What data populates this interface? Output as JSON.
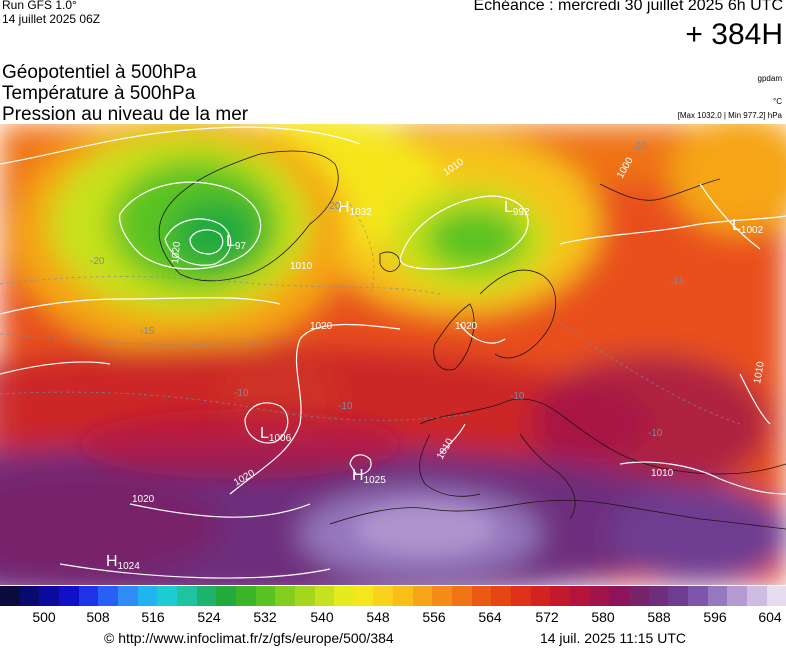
{
  "header": {
    "run_label": "Run GFS 1.0°",
    "run_date": "14 juillet 2025 06Z",
    "echeance": "Echéance : mercredi 30 juillet 2025 6h UTC",
    "lead_time": "+ 384H"
  },
  "titles": {
    "line1": "Géopotentiel à 500hPa",
    "line2": "Température à 500hPa",
    "line3": "Pression au niveau de la mer"
  },
  "meta": {
    "source_tag": "gpdam",
    "unit_tag": "°C",
    "range_tag": "[Max 1032.0 | Min 977.2] hPa"
  },
  "map": {
    "pressure_centers": [
      {
        "type": "L",
        "value": "97"
      },
      {
        "type": "H",
        "value": "1032"
      },
      {
        "type": "L",
        "value": "992"
      },
      {
        "type": "L",
        "value": "1002"
      },
      {
        "type": "L",
        "value": "1006"
      },
      {
        "type": "H",
        "value": "1025"
      },
      {
        "type": "H",
        "value": "1024"
      }
    ],
    "isobar_labels": [
      "1020",
      "1010",
      "1020",
      "1010",
      "1010",
      "1020",
      "1020",
      "1010",
      "1010",
      "1000",
      "1020"
    ],
    "temperature_labels": [
      "-20",
      "-20",
      "-15",
      "-10",
      "-10",
      "-20",
      "-15",
      "-10",
      "-10"
    ]
  },
  "colorbar": {
    "colors": [
      "#0a0a3c",
      "#0a0a6e",
      "#0a0a9e",
      "#1010c8",
      "#1f34e8",
      "#2860f5",
      "#2d8cf5",
      "#22b4ee",
      "#1ecbd2",
      "#1ec3a0",
      "#1eb46e",
      "#23aa3c",
      "#3cb428",
      "#5ac323",
      "#82cd1e",
      "#a5d71e",
      "#c8e11e",
      "#e6eb1e",
      "#f5e61e",
      "#fad21e",
      "#fabe19",
      "#f5a519",
      "#f58c19",
      "#f07314",
      "#eb5a14",
      "#e64614",
      "#dc3219",
      "#d2231e",
      "#c3192d",
      "#b4143c",
      "#a0144b",
      "#8c145a",
      "#782369",
      "#6e2d7d",
      "#6e3c91",
      "#7d55aa",
      "#9678be",
      "#b49bd2",
      "#cdbee1",
      "#e6dcf0"
    ],
    "tick_labels": [
      "500",
      "508",
      "516",
      "524",
      "532",
      "540",
      "548",
      "556",
      "564",
      "572",
      "580",
      "588",
      "596",
      "604"
    ]
  },
  "footer": {
    "url": "© http://www.infoclimat.fr/z/gfs/europe/500/384",
    "timestamp": "14 juil. 2025 11:15 UTC"
  }
}
